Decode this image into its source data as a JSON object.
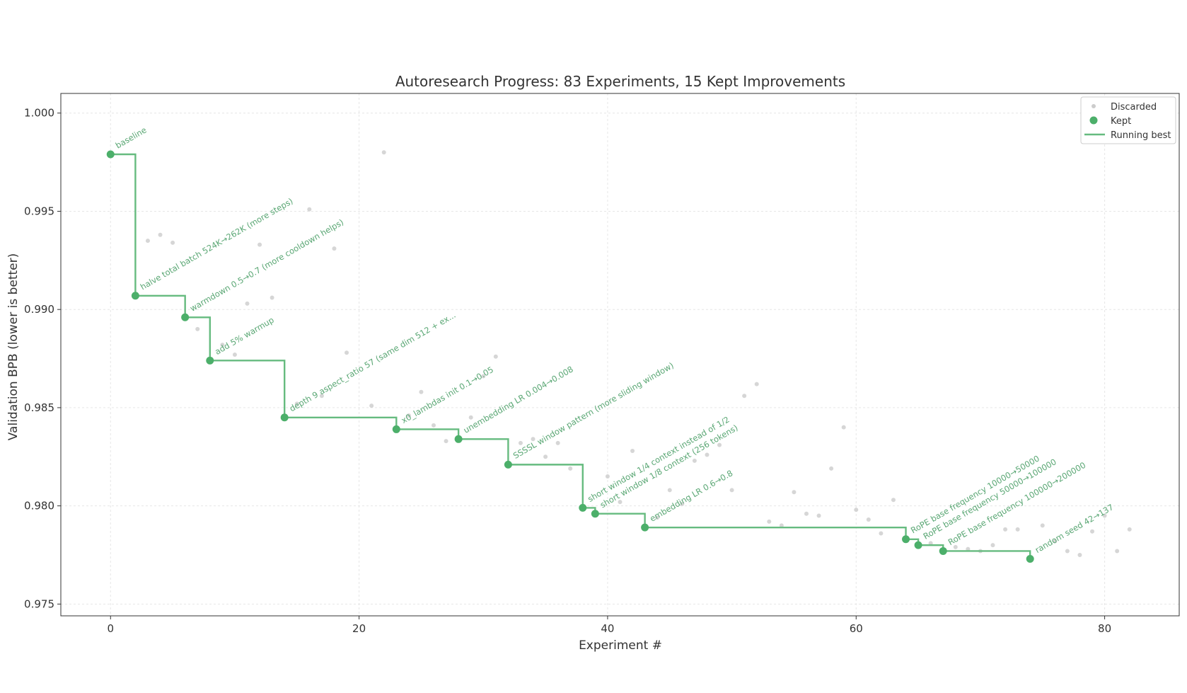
{
  "chart_data": {
    "type": "scatter",
    "title": "Autoresearch Progress: 83 Experiments, 15 Kept Improvements",
    "xlabel": "Experiment #",
    "ylabel": "Validation BPB (lower is better)",
    "xlim": [
      -4,
      86
    ],
    "ylim": [
      0.9744,
      1.001
    ],
    "xticks": [
      0,
      20,
      40,
      60,
      80
    ],
    "yticks": [
      1.0,
      0.995,
      0.99,
      0.985,
      0.98,
      0.975
    ],
    "ytick_labels": [
      "1.000",
      "0.995",
      "0.990",
      "0.985",
      "0.980",
      "0.975"
    ],
    "grid": true,
    "legend_position": "upper right",
    "colors": {
      "kept": "#4caf6a",
      "line": "#66bb7f",
      "discarded": "#cccccc",
      "annotation": "#5aa774"
    },
    "legend": [
      {
        "label": "Discarded",
        "marker": "discarded"
      },
      {
        "label": "Kept",
        "marker": "kept"
      },
      {
        "label": "Running best",
        "marker": "line"
      }
    ],
    "series": [
      {
        "name": "Kept",
        "points": [
          {
            "x": 0,
            "y": 0.9979,
            "label": "baseline"
          },
          {
            "x": 2,
            "y": 0.9907,
            "label": "halve total batch 524K→262K (more steps)"
          },
          {
            "x": 6,
            "y": 0.9896,
            "label": "warmdown 0.5→0.7 (more cooldown helps)"
          },
          {
            "x": 8,
            "y": 0.9874,
            "label": "add 5% warmup"
          },
          {
            "x": 14,
            "y": 0.9845,
            "label": "depth 9 aspect_ratio 57 (same dim 512 + ex..."
          },
          {
            "x": 23,
            "y": 0.9839,
            "label": "x0_lambdas init 0.1→0.05"
          },
          {
            "x": 28,
            "y": 0.9834,
            "label": "unembedding LR 0.004→0.008"
          },
          {
            "x": 32,
            "y": 0.9821,
            "label": "SSSSL window pattern (more sliding window)"
          },
          {
            "x": 38,
            "y": 0.9799,
            "label": "short window 1/4 context instead of 1/2"
          },
          {
            "x": 39,
            "y": 0.9796,
            "label": "short window 1/8 context (256 tokens)"
          },
          {
            "x": 43,
            "y": 0.9789,
            "label": "embedding LR 0.6→0.8"
          },
          {
            "x": 64,
            "y": 0.9783,
            "label": "RoPE base frequency 10000→50000"
          },
          {
            "x": 65,
            "y": 0.978,
            "label": "RoPE base frequency 50000→100000"
          },
          {
            "x": 67,
            "y": 0.9777,
            "label": "RoPE base frequency 100000→200000"
          },
          {
            "x": 74,
            "y": 0.9773,
            "label": "random seed 42→137"
          }
        ]
      },
      {
        "name": "Discarded",
        "points": [
          {
            "x": 3,
            "y": 0.9935
          },
          {
            "x": 4,
            "y": 0.9938
          },
          {
            "x": 5,
            "y": 0.9934
          },
          {
            "x": 7,
            "y": 0.989
          },
          {
            "x": 9,
            "y": 0.9882
          },
          {
            "x": 10,
            "y": 0.9877
          },
          {
            "x": 11,
            "y": 0.9903
          },
          {
            "x": 12,
            "y": 0.9933
          },
          {
            "x": 13,
            "y": 0.9906
          },
          {
            "x": 15,
            "y": 0.9852
          },
          {
            "x": 16,
            "y": 0.9951
          },
          {
            "x": 17,
            "y": 0.9856
          },
          {
            "x": 18,
            "y": 0.9931
          },
          {
            "x": 19,
            "y": 0.9878
          },
          {
            "x": 21,
            "y": 0.9851
          },
          {
            "x": 22,
            "y": 0.998
          },
          {
            "x": 24,
            "y": 0.9846
          },
          {
            "x": 25,
            "y": 0.9858
          },
          {
            "x": 26,
            "y": 0.9841
          },
          {
            "x": 27,
            "y": 0.9833
          },
          {
            "x": 29,
            "y": 0.9845
          },
          {
            "x": 30,
            "y": 0.9866
          },
          {
            "x": 31,
            "y": 0.9876
          },
          {
            "x": 33,
            "y": 0.9832
          },
          {
            "x": 34,
            "y": 0.9834
          },
          {
            "x": 35,
            "y": 0.9825
          },
          {
            "x": 36,
            "y": 0.9832
          },
          {
            "x": 37,
            "y": 0.9819
          },
          {
            "x": 40,
            "y": 0.9815
          },
          {
            "x": 41,
            "y": 0.9802
          },
          {
            "x": 42,
            "y": 0.9828
          },
          {
            "x": 44,
            "y": 0.9794
          },
          {
            "x": 45,
            "y": 0.9808
          },
          {
            "x": 46,
            "y": 0.9801
          },
          {
            "x": 47,
            "y": 0.9823
          },
          {
            "x": 48,
            "y": 0.9826
          },
          {
            "x": 49,
            "y": 0.9831
          },
          {
            "x": 50,
            "y": 0.9808
          },
          {
            "x": 51,
            "y": 0.9856
          },
          {
            "x": 52,
            "y": 0.9862
          },
          {
            "x": 53,
            "y": 0.9792
          },
          {
            "x": 54,
            "y": 0.979
          },
          {
            "x": 55,
            "y": 0.9807
          },
          {
            "x": 56,
            "y": 0.9796
          },
          {
            "x": 57,
            "y": 0.9795
          },
          {
            "x": 58,
            "y": 0.9819
          },
          {
            "x": 59,
            "y": 0.984
          },
          {
            "x": 60,
            "y": 0.9798
          },
          {
            "x": 61,
            "y": 0.9793
          },
          {
            "x": 62,
            "y": 0.9786
          },
          {
            "x": 63,
            "y": 0.9803
          },
          {
            "x": 66,
            "y": 0.9781
          },
          {
            "x": 68,
            "y": 0.9779
          },
          {
            "x": 69,
            "y": 0.9778
          },
          {
            "x": 70,
            "y": 0.9777
          },
          {
            "x": 71,
            "y": 0.978
          },
          {
            "x": 72,
            "y": 0.9788
          },
          {
            "x": 73,
            "y": 0.9788
          },
          {
            "x": 75,
            "y": 0.979
          },
          {
            "x": 76,
            "y": 0.9782
          },
          {
            "x": 77,
            "y": 0.9777
          },
          {
            "x": 78,
            "y": 0.9775
          },
          {
            "x": 79,
            "y": 0.9787
          },
          {
            "x": 80,
            "y": 0.9795
          },
          {
            "x": 81,
            "y": 0.9777
          },
          {
            "x": 82,
            "y": 0.9788
          }
        ]
      }
    ]
  }
}
